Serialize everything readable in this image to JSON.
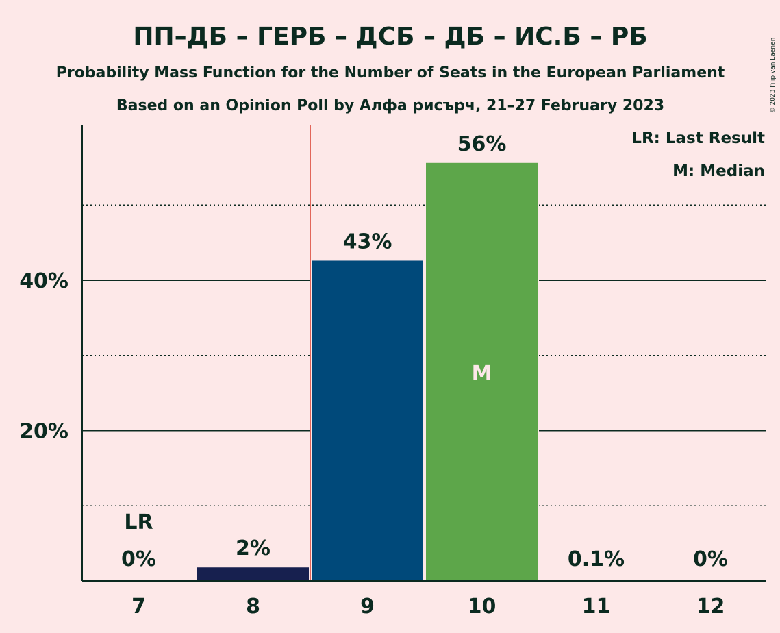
{
  "header": {
    "title": "ПП–ДБ – ГЕРБ – ДСБ – ДБ – ИС.Б – РБ",
    "subtitle": "Probability Mass Function for the Number of Seats in the European Parliament",
    "source": "Based on an Opinion Poll by Алфа рисърч, 21–27 February 2023"
  },
  "legend": {
    "last_result": "LR: Last Result",
    "median": "M: Median"
  },
  "copyright": "© 2023 Filip van Laenen",
  "colors": {
    "background": "#FDE8E8",
    "text": "#0B2A20",
    "last_result_line": "#D93B2B"
  },
  "chart_data": {
    "type": "bar",
    "categories": [
      "7",
      "8",
      "9",
      "10",
      "11",
      "12"
    ],
    "values": [
      0,
      1.8,
      42.6,
      55.6,
      0.1,
      0
    ],
    "data_labels": [
      "0%",
      "2%",
      "43%",
      "56%",
      "0.1%",
      "0%"
    ],
    "bar_colors": [
      "#0F1A4A",
      "#17204F",
      "#00497A",
      "#5DA64A",
      "#3A5F8A",
      "#3A5F8A"
    ],
    "ylim": [
      0,
      60
    ],
    "major_ticks": [
      20,
      40
    ],
    "major_tick_labels": [
      "20%",
      "40%"
    ],
    "minor_gridlines": [
      10,
      30,
      50
    ],
    "last_result_seat": "7",
    "last_result_marker": "LR",
    "last_result_line_between": [
      "8",
      "9"
    ],
    "median_seat": "10",
    "median_marker": "M"
  }
}
